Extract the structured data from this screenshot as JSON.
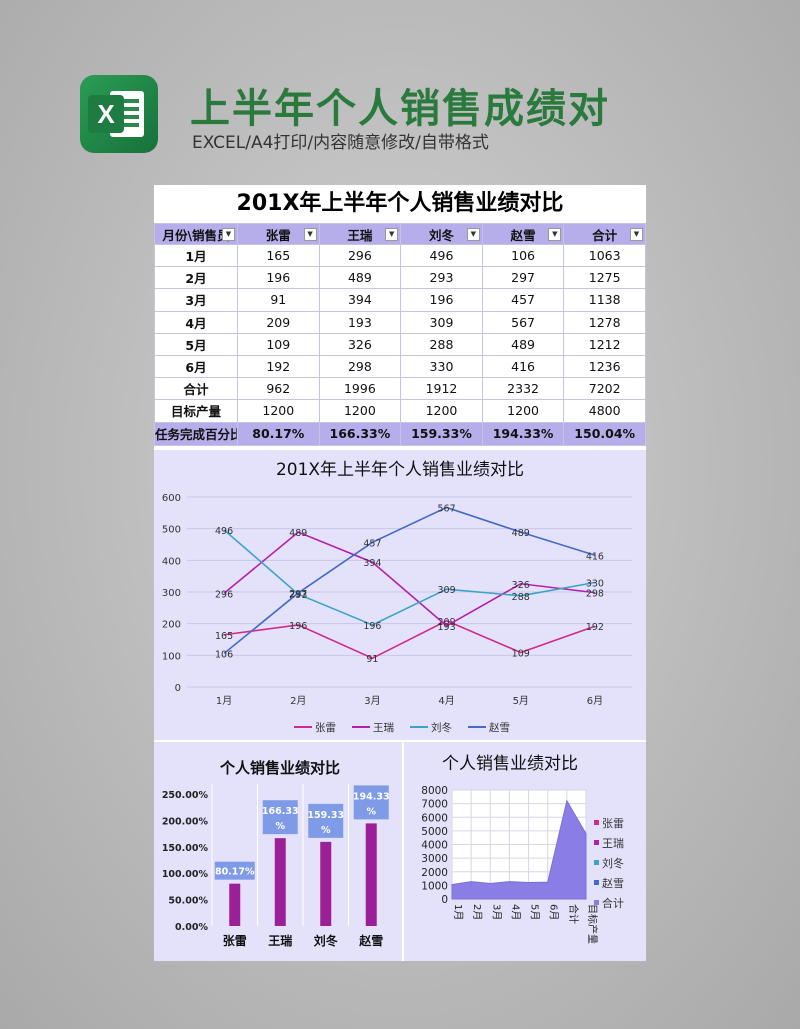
{
  "header": {
    "icon_letter": "X",
    "title": "上半年个人销售成绩对",
    "subtitle": "EXCEL/A4打印/内容随意修改/自带格式"
  },
  "sheet": {
    "title": "201X年上半年个人销售业绩对比",
    "columns": [
      "月份\\销售员",
      "张雷",
      "王瑞",
      "刘冬",
      "赵雪",
      "合计"
    ],
    "rows": [
      {
        "label": "1月",
        "values": [
          "165",
          "296",
          "496",
          "106",
          "1063"
        ]
      },
      {
        "label": "2月",
        "values": [
          "196",
          "489",
          "293",
          "297",
          "1275"
        ]
      },
      {
        "label": "3月",
        "values": [
          "91",
          "394",
          "196",
          "457",
          "1138"
        ]
      },
      {
        "label": "4月",
        "values": [
          "209",
          "193",
          "309",
          "567",
          "1278"
        ]
      },
      {
        "label": "5月",
        "values": [
          "109",
          "326",
          "288",
          "489",
          "1212"
        ]
      },
      {
        "label": "6月",
        "values": [
          "192",
          "298",
          "330",
          "416",
          "1236"
        ]
      },
      {
        "label": "合计",
        "values": [
          "962",
          "1996",
          "1912",
          "2332",
          "7202"
        ]
      },
      {
        "label": "目标产量",
        "values": [
          "1200",
          "1200",
          "1200",
          "1200",
          "4800"
        ]
      }
    ],
    "pct_row": {
      "label": "任务完成百分比",
      "values": [
        "80.17%",
        "166.33%",
        "159.33%",
        "194.33%",
        "150.04%"
      ]
    }
  },
  "chart_data": [
    {
      "type": "line",
      "title": "201X年上半年个人销售业绩对比",
      "categories": [
        "1月",
        "2月",
        "3月",
        "4月",
        "5月",
        "6月"
      ],
      "yticks": [
        "0",
        "100",
        "200",
        "300",
        "400",
        "500",
        "600"
      ],
      "ylim": [
        0,
        600
      ],
      "legend_position": "bottom",
      "series": [
        {
          "name": "张雷",
          "color": "#d12a8e",
          "values": [
            165,
            196,
            91,
            209,
            109,
            192
          ],
          "labels": [
            "165",
            "196",
            "91",
            "209",
            "109",
            "192"
          ]
        },
        {
          "name": "王瑞",
          "color": "#b41fb0",
          "values": [
            296,
            489,
            394,
            193,
            326,
            298
          ],
          "labels": [
            "296",
            "489",
            "394",
            "193",
            "326",
            "298"
          ]
        },
        {
          "name": "刘冬",
          "color": "#3aa3c8",
          "values": [
            496,
            293,
            196,
            309,
            288,
            330
          ],
          "labels": [
            "496",
            "293",
            "196",
            "309",
            "288",
            "330"
          ]
        },
        {
          "name": "赵雪",
          "color": "#4469c9",
          "values": [
            106,
            297,
            457,
            567,
            489,
            416
          ],
          "labels": [
            "106",
            "297",
            "457",
            "567",
            "489",
            "416"
          ]
        }
      ]
    },
    {
      "type": "bar",
      "title": "个人销售业绩对比",
      "categories": [
        "张雷",
        "王瑞",
        "刘冬",
        "赵雪"
      ],
      "values": [
        80.17,
        166.33,
        159.33,
        194.33
      ],
      "labels": [
        "80.17%",
        "166.33%",
        "159.33%",
        "194.33%"
      ],
      "yticks": [
        "0.00%",
        "50.00%",
        "100.00%",
        "150.00%",
        "200.00%",
        "250.00%"
      ],
      "ylim": [
        0,
        250
      ],
      "bar_color": "#9b1f96",
      "label_bg": "#7f9be8"
    },
    {
      "type": "area",
      "title": "个人销售业绩对比",
      "categories": [
        "1月",
        "2月",
        "3月",
        "4月",
        "5月",
        "6月",
        "合计",
        "目标产量"
      ],
      "values": [
        1063,
        1275,
        1138,
        1278,
        1212,
        1236,
        7202,
        4800
      ],
      "yticks": [
        "0",
        "1000",
        "2000",
        "3000",
        "4000",
        "5000",
        "6000",
        "7000",
        "8000"
      ],
      "ylim": [
        0,
        8000
      ],
      "area_color": "#8a7ee6",
      "legend": [
        {
          "name": "张雷",
          "color": "#d12a8e"
        },
        {
          "name": "王瑞",
          "color": "#b41fb0"
        },
        {
          "name": "刘冬",
          "color": "#3aa3c8"
        },
        {
          "name": "赵雪",
          "color": "#4469c9"
        },
        {
          "name": "合计",
          "color": "#8a7ee6"
        }
      ]
    }
  ]
}
